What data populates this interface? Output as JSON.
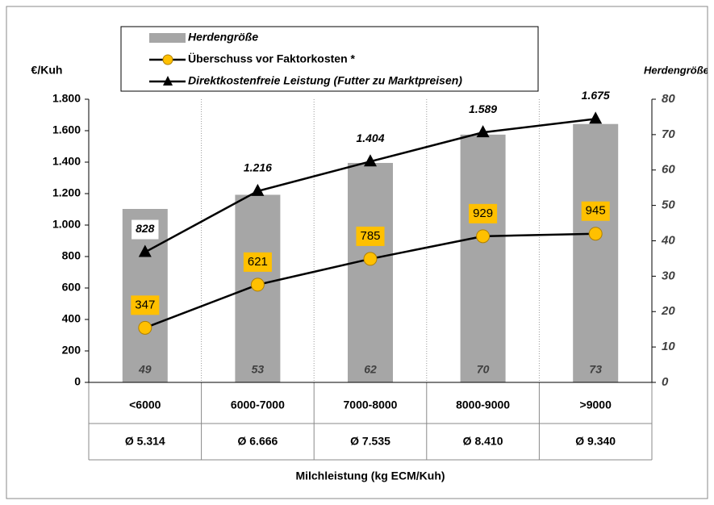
{
  "chart_data": {
    "type": "bar+line",
    "categories": [
      "<6000",
      "6000-7000",
      "7000-8000",
      "8000-9000",
      ">9000"
    ],
    "subcategories": [
      "Ø 5.314",
      "Ø 6.666",
      "Ø 7.535",
      "Ø 8.410",
      "Ø 9.340"
    ],
    "ylabel": "€/Kuh",
    "y2label": "Herdengröße",
    "xlabel": "Milchleistung (kg ECM/Kuh)",
    "ylim": [
      0,
      1800
    ],
    "yticks": [
      0,
      200,
      400,
      600,
      800,
      {
        "value": 1000,
        "label": "1.000"
      },
      {
        "value": 1200,
        "label": "1.200"
      },
      {
        "value": 1400,
        "label": "1.400"
      },
      {
        "value": 1600,
        "label": "1.600"
      },
      {
        "value": 1800,
        "label": "1.800"
      }
    ],
    "y2lim": [
      0,
      80
    ],
    "y2ticks": [
      0,
      10,
      20,
      30,
      40,
      50,
      60,
      70,
      80
    ],
    "series": [
      {
        "name": "Herdengröße",
        "kind": "bar",
        "axis": "y2",
        "color": "#a6a6a6",
        "values": [
          49,
          53,
          62,
          70,
          73
        ]
      },
      {
        "name": "Überschuss vor Faktorkosten *",
        "kind": "line",
        "marker": "circle",
        "color": "#ffc000",
        "values": [
          347,
          621,
          785,
          929,
          945
        ]
      },
      {
        "name": "Direktkostenfreie Leistung (Futter zu Marktpreisen)",
        "kind": "line",
        "marker": "triangle",
        "color": "#000000",
        "values": [
          828,
          1216,
          1404,
          1589,
          1675
        ],
        "value_labels": [
          "828",
          "1.216",
          "1.404",
          "1.589",
          "1.675"
        ]
      }
    ]
  }
}
